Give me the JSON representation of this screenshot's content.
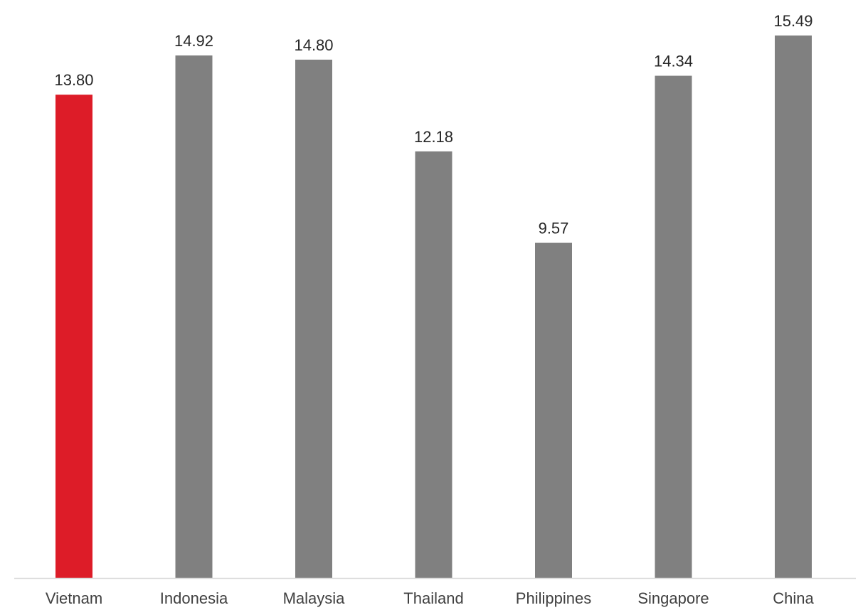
{
  "chart_data": {
    "type": "bar",
    "title": "",
    "xlabel": "",
    "ylabel": "",
    "categories": [
      "Vietnam",
      "Indonesia",
      "Malaysia",
      "Thailand",
      "Philippines",
      "Singapore",
      "China"
    ],
    "values": [
      13.8,
      14.92,
      14.8,
      12.18,
      9.57,
      14.34,
      15.49
    ],
    "value_labels": [
      "13.80",
      "14.92",
      "14.80",
      "12.18",
      "9.57",
      "14.34",
      "15.49"
    ],
    "ylim": [
      0,
      16.3
    ],
    "grid": false,
    "legend": "none",
    "colors": {
      "highlight": "#dd1c28",
      "default": "#808080",
      "axis": "#d9d9d9",
      "label_text": "#404040",
      "value_text": "#262626"
    },
    "highlight_index": 0
  }
}
